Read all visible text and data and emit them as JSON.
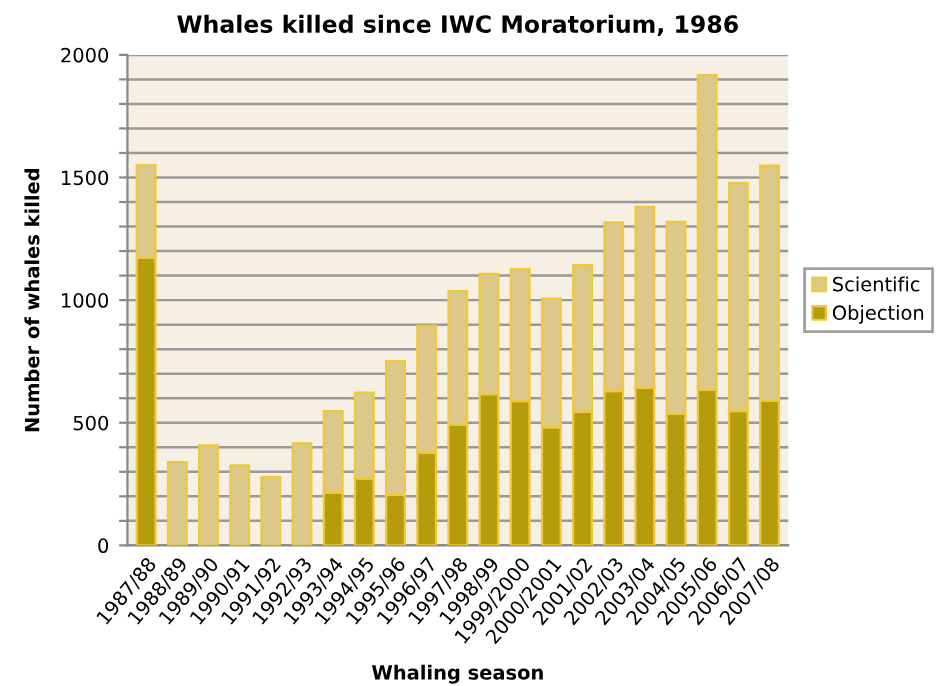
{
  "chart_data": {
    "type": "bar",
    "stacked": true,
    "title": "Whales killed since IWC Moratorium, 1986",
    "xlabel": "Whaling season",
    "ylabel": "Number of whales killed",
    "categories": [
      "1987/88",
      "1988/89",
      "1989/90",
      "1990/91",
      "1991/92",
      "1992/93",
      "1993/94",
      "1994/95",
      "1995/96",
      "1996/97",
      "1997/98",
      "1998/99",
      "1999/2000",
      "2000/2001",
      "2001/02",
      "2002/03",
      "2003/04",
      "2004/05",
      "2005/06",
      "2006/07",
      "2007/08"
    ],
    "series": [
      {
        "name": "Objection",
        "color": "#b59c0c",
        "values": [
          1172,
          0,
          0,
          0,
          0,
          0,
          215,
          272,
          206,
          378,
          492,
          617,
          588,
          481,
          544,
          629,
          642,
          536,
          634,
          547,
          590
        ]
      },
      {
        "name": "Scientific",
        "color": "#dcc88a",
        "values": [
          379,
          340,
          408,
          326,
          278,
          416,
          332,
          351,
          545,
          517,
          545,
          490,
          538,
          525,
          599,
          688,
          738,
          783,
          1284,
          931,
          958
        ]
      }
    ],
    "ylim": [
      0,
      2000
    ],
    "yticks": [
      0,
      {
        "value": 100,
        "label": null
      },
      {
        "value": 200,
        "label": null
      },
      {
        "value": 300,
        "label": null
      },
      {
        "value": 400,
        "label": null
      },
      500,
      {
        "value": 600,
        "label": null
      },
      {
        "value": 700,
        "label": null
      },
      {
        "value": 800,
        "label": null
      },
      {
        "value": 900,
        "label": null
      },
      1000,
      {
        "value": 1100,
        "label": null
      },
      {
        "value": 1200,
        "label": null
      },
      {
        "value": 1300,
        "label": null
      },
      {
        "value": 1400,
        "label": null
      },
      1500,
      {
        "value": 1600,
        "label": null
      },
      {
        "value": 1700,
        "label": null
      },
      {
        "value": 1800,
        "label": null
      },
      {
        "value": 1900,
        "label": null
      },
      2000
    ],
    "grid": "y",
    "legend": "right"
  }
}
